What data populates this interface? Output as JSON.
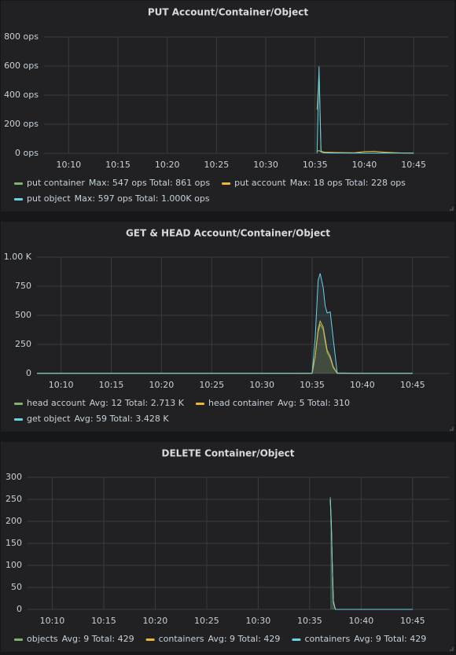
{
  "chart_data": [
    {
      "type": "line",
      "title": "PUT Account/Container/Object",
      "x": [
        635.2,
        635.4,
        635.6,
        635.8,
        636,
        637,
        638,
        639,
        640,
        641,
        642,
        643,
        644,
        645
      ],
      "series": [
        {
          "name": "put container",
          "legend": "Max: 547 ops  Total: 861 ops",
          "color": "#7eb26d",
          "values": [
            300,
            547,
            20,
            5,
            5,
            3,
            3,
            2,
            2,
            2,
            2,
            2,
            2,
            2
          ]
        },
        {
          "name": "put account",
          "legend": "Max: 18 ops  Total: 228 ops",
          "color": "#eab839",
          "values": [
            15,
            18,
            12,
            10,
            8,
            6,
            5,
            4,
            12,
            14,
            8,
            5,
            2,
            1
          ]
        },
        {
          "name": "put object",
          "legend": "Max: 597 ops  Total: 1.000K ops",
          "color": "#6ed0e0",
          "values": [
            0,
            597,
            10,
            5,
            3,
            2,
            2,
            2,
            2,
            2,
            2,
            2,
            2,
            2
          ]
        }
      ],
      "xlim": [
        607.5,
        648.5
      ],
      "xticks": [
        {
          "value": 610,
          "label": "10:10"
        },
        {
          "value": 615,
          "label": "10:15"
        },
        {
          "value": 620,
          "label": "10:20"
        },
        {
          "value": 625,
          "label": "10:25"
        },
        {
          "value": 630,
          "label": "10:30"
        },
        {
          "value": 635,
          "label": "10:35"
        },
        {
          "value": 640,
          "label": "10:40"
        },
        {
          "value": 645,
          "label": "10:45"
        }
      ],
      "ylim": [
        0,
        800
      ],
      "yticks": [
        {
          "value": 0,
          "label": "0 ops"
        },
        {
          "value": 200,
          "label": "200 ops"
        },
        {
          "value": 400,
          "label": "400 ops"
        },
        {
          "value": 600,
          "label": "600 ops"
        },
        {
          "value": 800,
          "label": "800 ops"
        }
      ],
      "grid": true,
      "fill": false
    },
    {
      "type": "line",
      "title": "GET & HEAD Account/Container/Object",
      "x": [
        607.6,
        610,
        615,
        620,
        625,
        630,
        635,
        635.3,
        635.6,
        635.8,
        636.1,
        636.3,
        636.5,
        636.8,
        637.1,
        637.5,
        640,
        645
      ],
      "series": [
        {
          "name": "head account",
          "legend": "Avg: 12  Total: 2.713 K",
          "color": "#7eb26d",
          "values": [
            2,
            2,
            2,
            2,
            2,
            2,
            2,
            140,
            360,
            420,
            380,
            270,
            180,
            130,
            50,
            2,
            2,
            2
          ]
        },
        {
          "name": "head container",
          "legend": "Avg: 5  Total: 310",
          "color": "#eab839",
          "values": [
            1,
            1,
            1,
            1,
            1,
            1,
            1,
            150,
            380,
            450,
            400,
            300,
            200,
            150,
            60,
            2,
            1,
            1
          ]
        },
        {
          "name": "get object",
          "legend": "Avg: 59  Total: 3.428 K",
          "color": "#6ed0e0",
          "values": [
            2,
            2,
            2,
            2,
            2,
            2,
            3,
            300,
            800,
            860,
            740,
            580,
            520,
            530,
            300,
            5,
            2,
            2
          ]
        }
      ],
      "xlim": [
        607.6,
        648.7
      ],
      "xticks": [
        {
          "value": 610,
          "label": "10:10"
        },
        {
          "value": 615,
          "label": "10:15"
        },
        {
          "value": 620,
          "label": "10:20"
        },
        {
          "value": 625,
          "label": "10:25"
        },
        {
          "value": 630,
          "label": "10:30"
        },
        {
          "value": 635,
          "label": "10:35"
        },
        {
          "value": 640,
          "label": "10:40"
        },
        {
          "value": 645,
          "label": "10:45"
        }
      ],
      "ylim": [
        0,
        1000
      ],
      "yticks": [
        0,
        250,
        500,
        750,
        {
          "value": 1000,
          "label": "1.00 K"
        }
      ],
      "grid": true,
      "fill": true
    },
    {
      "type": "line",
      "title": "DELETE Container/Object",
      "x": [
        637,
        637.1,
        637.2,
        637.3,
        637.5,
        640,
        645
      ],
      "series": [
        {
          "name": "objects",
          "legend": "Avg: 9  Total: 429",
          "color": "#7eb26d",
          "values": [
            255,
            200,
            100,
            20,
            0,
            0,
            0
          ]
        },
        {
          "name": "containers",
          "legend": "Avg: 9  Total: 429",
          "color": "#eab839",
          "values": [
            250,
            195,
            98,
            18,
            0,
            0,
            0
          ]
        },
        {
          "name": "containers",
          "legend": "Avg: 9  Total: 429",
          "color": "#6ed0e0",
          "values": [
            250,
            190,
            95,
            15,
            0,
            0,
            0
          ]
        }
      ],
      "xlim": [
        607.6,
        648.6
      ],
      "xticks": [
        {
          "value": 610,
          "label": "10:10"
        },
        {
          "value": 615,
          "label": "10:15"
        },
        {
          "value": 620,
          "label": "10:20"
        },
        {
          "value": 625,
          "label": "10:25"
        },
        {
          "value": 630,
          "label": "10:30"
        },
        {
          "value": 635,
          "label": "10:35"
        },
        {
          "value": 640,
          "label": "10:40"
        },
        {
          "value": 645,
          "label": "10:45"
        }
      ],
      "ylim": [
        0,
        300
      ],
      "yticks": [
        0,
        50,
        100,
        150,
        200,
        250,
        300
      ],
      "grid": true,
      "fill": true
    }
  ]
}
